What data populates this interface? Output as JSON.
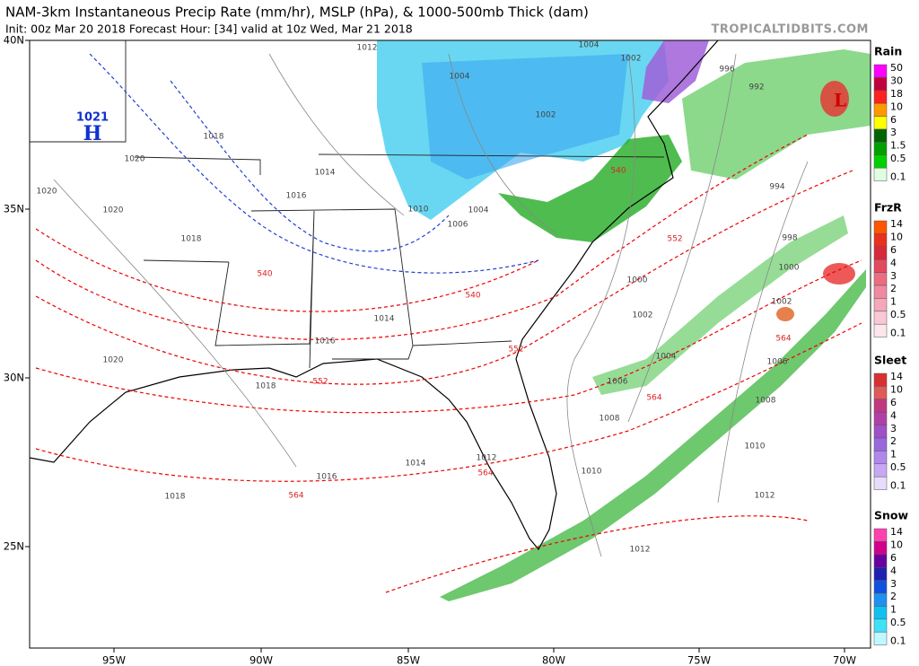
{
  "header": {
    "title": "NAM-3km Instantaneous Precip Rate (mm/hr), MSLP (hPa), & 1000-500mb Thick (dam)",
    "subtitle": "Init: 00z Mar 20 2018   Forecast Hour: [34]   valid at 10z Wed, Mar 21 2018",
    "site": "TROPICALTIDBITS.COM"
  },
  "lat_labels": [
    "40N",
    "35N",
    "30N",
    "25N"
  ],
  "lon_labels": [
    "95W",
    "90W",
    "85W",
    "80W",
    "75W",
    "70W"
  ],
  "legend": [
    {
      "name": "Rain",
      "levels": [
        50,
        30,
        18,
        10,
        6,
        3,
        1.5,
        0.5,
        0.1
      ],
      "colors": [
        "#ff00ff",
        "#c0003c",
        "#ff2020",
        "#ff9900",
        "#ffff00",
        "#006400",
        "#00a000",
        "#00d000",
        "#e0ffe0"
      ]
    },
    {
      "name": "FrzR",
      "levels": [
        14,
        10,
        6,
        4,
        3,
        2,
        1,
        0.5,
        0.1
      ],
      "colors": [
        "#ff5500",
        "#e8301e",
        "#d8283c",
        "#e24a60",
        "#ec6c80",
        "#f08aa0",
        "#f5a8b8",
        "#f9c8d4",
        "#fde6ec"
      ]
    },
    {
      "name": "Sleet",
      "levels": [
        14,
        10,
        6,
        4,
        3,
        2,
        1,
        0.5,
        0.1
      ],
      "colors": [
        "#d83030",
        "#e05a5a",
        "#c03a80",
        "#b040a8",
        "#a050c8",
        "#9a68dc",
        "#b088ec",
        "#c8a8f4",
        "#e8dcfc"
      ]
    },
    {
      "name": "Snow",
      "levels": [
        14,
        10,
        6,
        4,
        3,
        2,
        1,
        0.5,
        0.1
      ],
      "colors": [
        "#ff40b0",
        "#d0008c",
        "#6a00a0",
        "#2020b0",
        "#1050e0",
        "#2090f0",
        "#10c0f0",
        "#40e0f8",
        "#c0f8ff"
      ]
    }
  ],
  "centers": [
    1021,
    "H",
    "L"
  ],
  "isobar_labels": [
    1012,
    1004,
    1002,
    1004,
    1002,
    1018,
    1020,
    1014,
    1016,
    1020,
    1020,
    1018,
    1010,
    1006,
    1004,
    1014,
    1016,
    1020,
    1018,
    1012,
    1014,
    1016,
    1018,
    996,
    992,
    994,
    998,
    1000,
    1002,
    1004,
    1006,
    1008,
    1010,
    1012,
    1000,
    1002,
    1006,
    1008,
    1010,
    1012
  ],
  "thickness_labels": [
    540,
    540,
    540,
    552,
    552,
    552,
    564,
    564,
    564,
    564
  ]
}
